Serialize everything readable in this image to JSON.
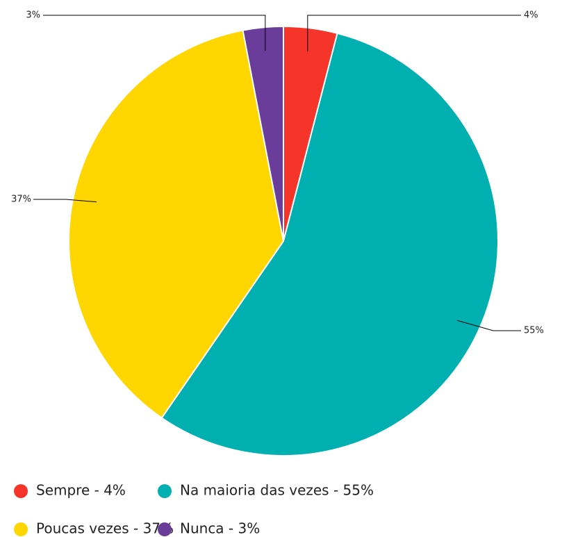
{
  "chart_data": {
    "type": "pie",
    "categories": [
      "Sempre - 4%",
      "Na maioria das vezes - 55%",
      "Poucas vezes - 37%",
      "Nunca - 3%"
    ],
    "values": [
      4,
      55,
      37,
      3
    ],
    "value_labels": [
      "4%",
      "55%",
      "37%",
      "3%"
    ],
    "colors": [
      "#f5352a",
      "#00b0b0",
      "#ffd600",
      "#6a3d9a"
    ],
    "legend": "bottom-left"
  }
}
